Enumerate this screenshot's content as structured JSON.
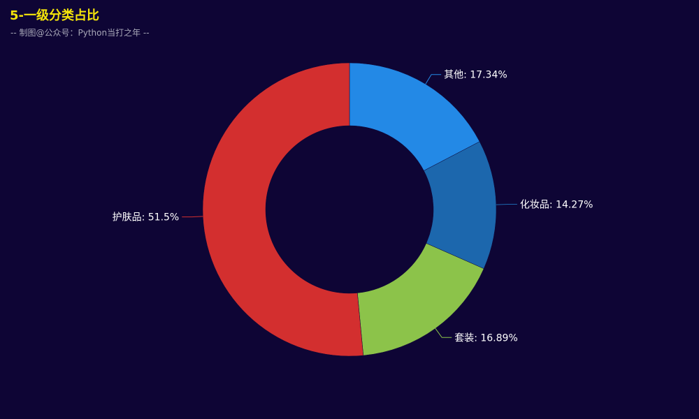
{
  "header": {
    "title": "5-一级分类占比",
    "subtitle": "-- 制图@公众号：Python当打之年 --"
  },
  "chart_data": {
    "type": "pie",
    "variant": "donut",
    "slices": [
      {
        "name": "其他",
        "value": 17.34,
        "label": "其他: 17.34%",
        "color": "#2389e6"
      },
      {
        "name": "化妆品",
        "value": 14.27,
        "label": "化妆品: 14.27%",
        "color": "#1c67ad"
      },
      {
        "name": "套装",
        "value": 16.89,
        "label": "套装: 16.89%",
        "color": "#8cc34a"
      },
      {
        "name": "护肤品",
        "value": 51.5,
        "label": "护肤品: 51.5%",
        "color": "#d32f2f"
      }
    ]
  }
}
